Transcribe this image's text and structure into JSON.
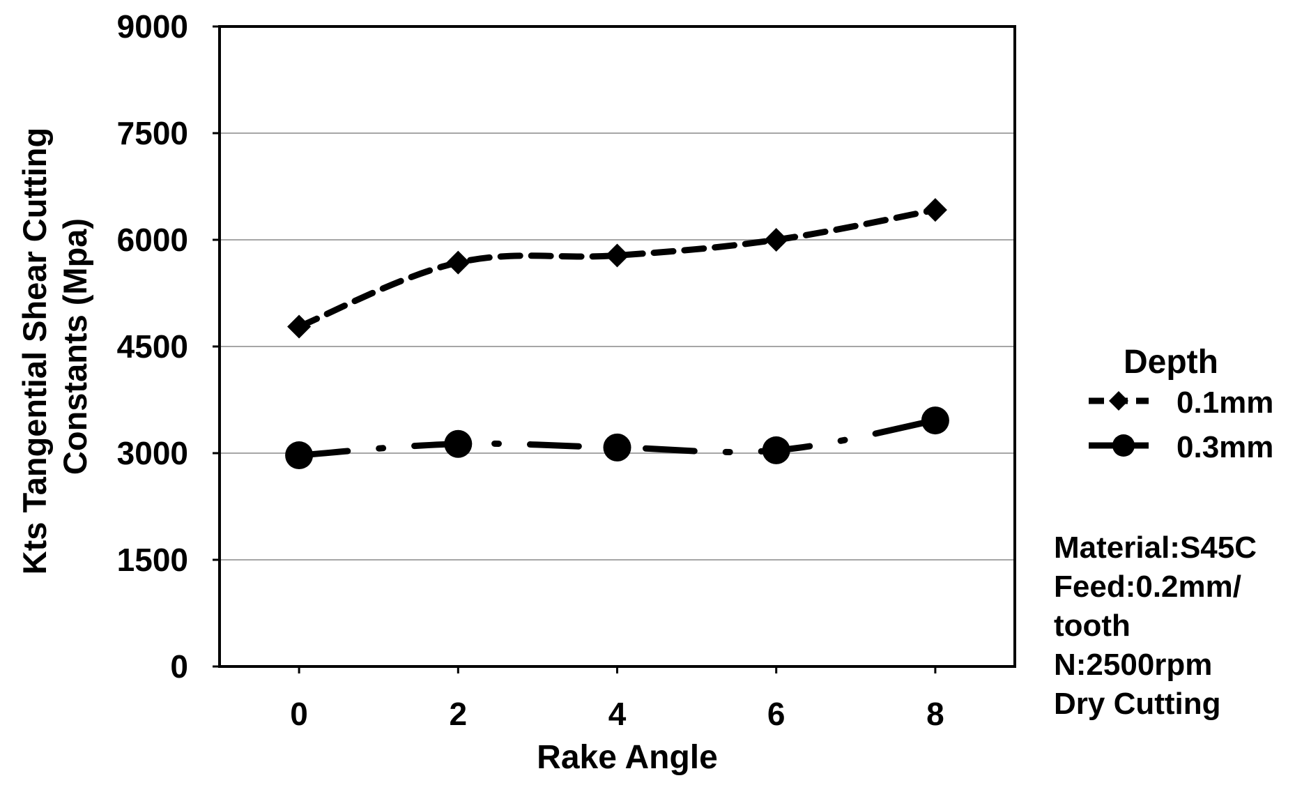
{
  "chart_data": {
    "type": "line",
    "title": "",
    "xlabel": "Rake Angle",
    "ylabel_lines": [
      "Kts Tangential Shear Cutting",
      "Constants (Mpa)"
    ],
    "categories": [
      "0",
      "2",
      "4",
      "6",
      "8"
    ],
    "ylim": [
      0,
      9000
    ],
    "yticks": [
      "0",
      "1500",
      "3000",
      "4500",
      "6000",
      "7500",
      "9000"
    ],
    "grid": true,
    "legend": {
      "title": "Depth",
      "placement": "right"
    },
    "series": [
      {
        "name": "0.1mm",
        "marker": "diamond",
        "line_style": "dashed",
        "values": [
          4780,
          5680,
          5780,
          6000,
          6420
        ]
      },
      {
        "name": "0.3mm",
        "marker": "circle",
        "line_style": "dash-dot",
        "values": [
          2970,
          3130,
          3080,
          3040,
          3460
        ]
      }
    ],
    "annotation_lines": [
      "Material:S45C",
      "Feed:0.2mm/",
      "tooth",
      "N:2500rpm",
      "Dry Cutting"
    ]
  }
}
